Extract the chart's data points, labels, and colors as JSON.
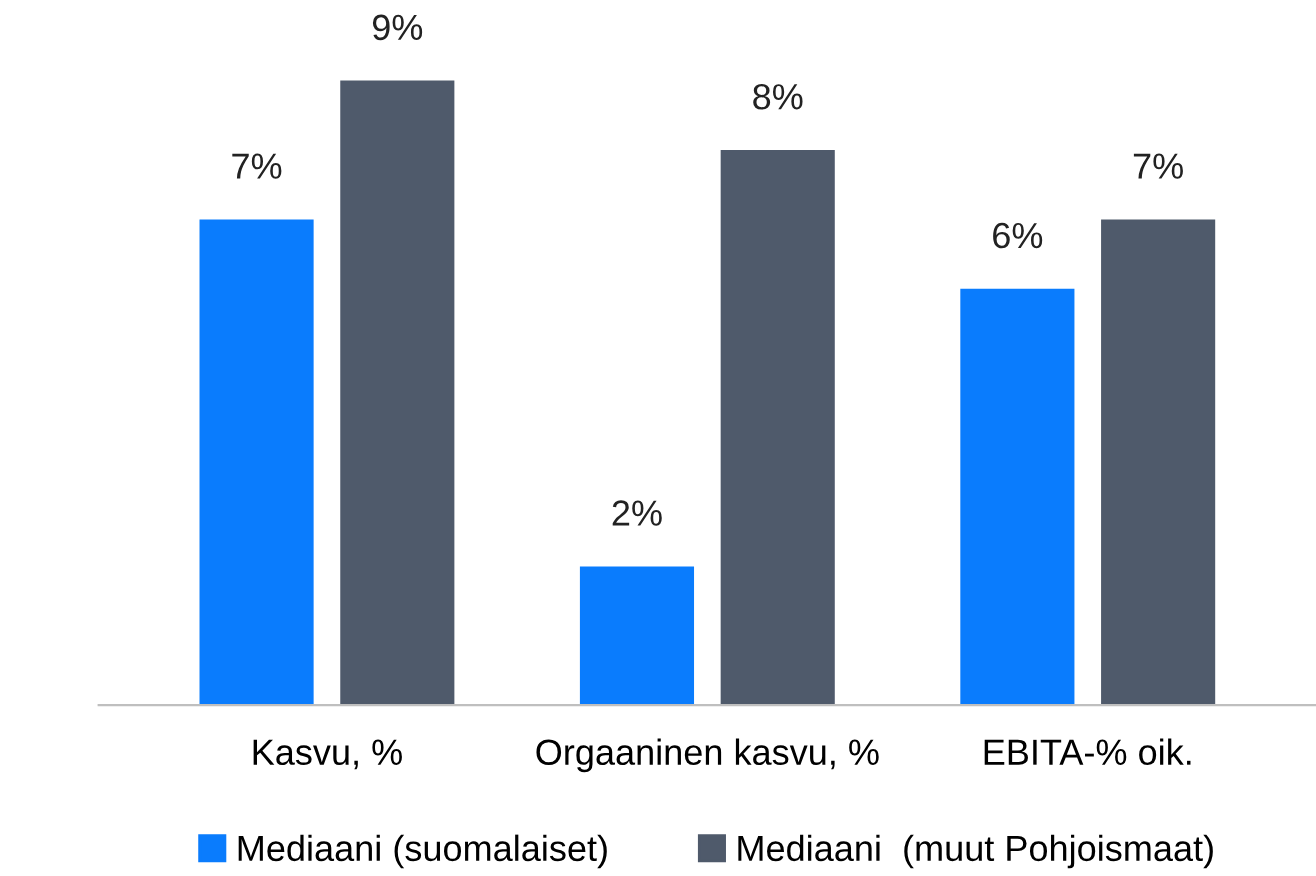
{
  "chart_data": {
    "type": "bar",
    "categories": [
      "Kasvu, %",
      "Orgaaninen kasvu, %",
      "EBITA-% oik."
    ],
    "series": [
      {
        "name": "Mediaani (suomalaiset)",
        "color": "#0a7cfd",
        "values": [
          7,
          2,
          6
        ],
        "value_labels": [
          "7%",
          "2%",
          "6%"
        ]
      },
      {
        "name": "Mediaani  (muut Pohjoismaat)",
        "color": "#4f5a6b",
        "values": [
          9,
          8,
          7
        ],
        "value_labels": [
          "9%",
          "8%",
          "7%"
        ]
      }
    ],
    "legend": "bottom",
    "grid": false
  }
}
